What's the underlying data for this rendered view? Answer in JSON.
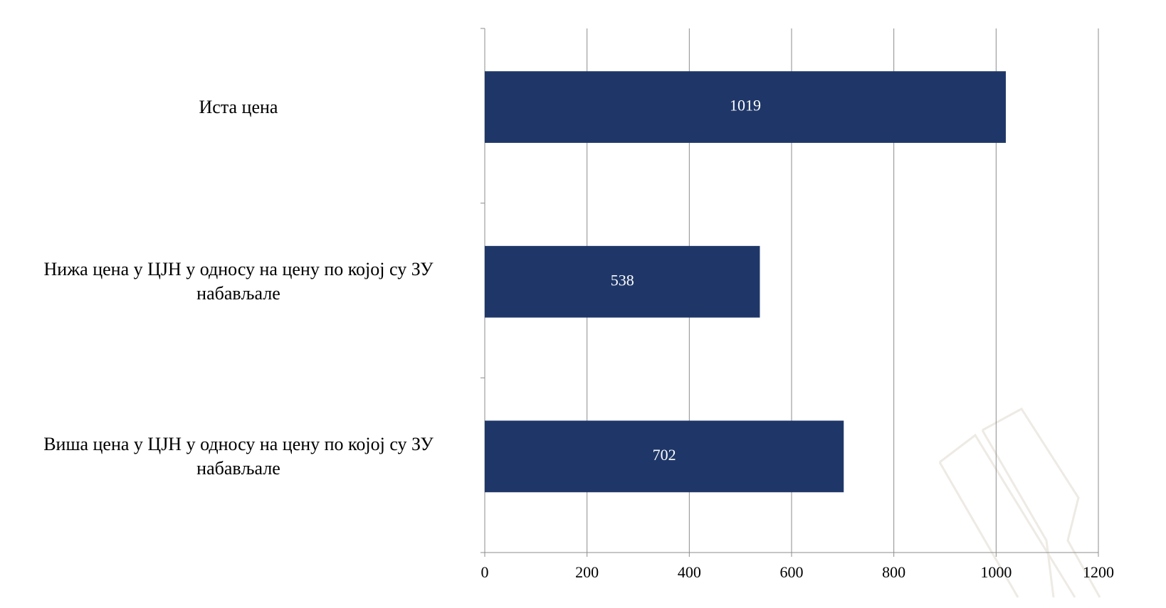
{
  "chart_data": {
    "type": "bar",
    "orientation": "horizontal",
    "categories": [
      "Иста цена",
      "Нижа цена у ЦЈН у односу на цену по којој су ЗУ набављале",
      "Виша цена у ЦЈН у односу на цену по којој су ЗУ набављале"
    ],
    "values": [
      1019,
      538,
      702
    ],
    "color": "#1f3768",
    "xlim": [
      0,
      1200
    ],
    "xticks": [
      0,
      200,
      400,
      600,
      800,
      1000,
      1200
    ],
    "grid": true
  }
}
